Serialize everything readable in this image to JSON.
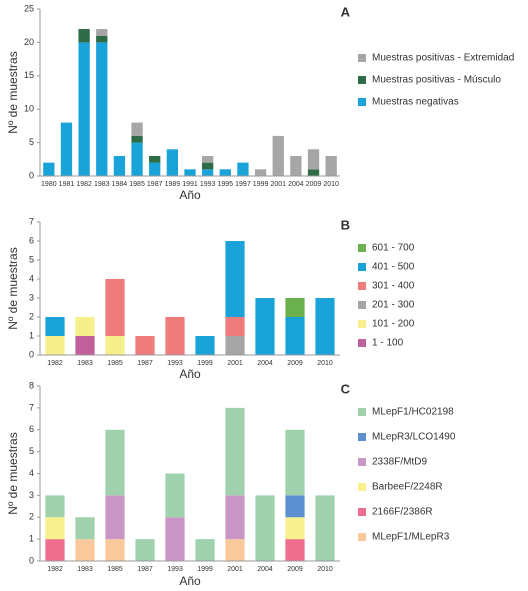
{
  "chart_data": [
    {
      "type": "bar",
      "stacked": true,
      "panel": "A",
      "x_label": "Año",
      "y_label": "Nº de muestras",
      "categories": [
        "1980",
        "1981",
        "1982",
        "1983",
        "1984",
        "1985",
        "1987",
        "1989",
        "1991",
        "1993",
        "1995",
        "1997",
        "1999",
        "2001",
        "2004",
        "2009",
        "2010"
      ],
      "series": [
        {
          "name": "Muestras negativas",
          "color": "#1aa3d9",
          "values": [
            2,
            8,
            20,
            20,
            3,
            5,
            2,
            4,
            1,
            1,
            1,
            2,
            0,
            0,
            0,
            0,
            0
          ]
        },
        {
          "name": "Muestras positivas - Músculo",
          "color": "#2e6b47",
          "values": [
            0,
            0,
            2,
            1,
            0,
            1,
            1,
            0,
            0,
            1,
            0,
            0,
            0,
            0,
            0,
            1,
            0
          ]
        },
        {
          "name": "Muestras positivas - Extremidad",
          "color": "#a6a6a6",
          "values": [
            0,
            0,
            0,
            1,
            0,
            2,
            0,
            0,
            0,
            1,
            0,
            0,
            1,
            6,
            3,
            3,
            3
          ]
        }
      ],
      "ylim": [
        0,
        25
      ],
      "yticks": [
        0,
        5,
        10,
        15,
        20,
        25
      ]
    },
    {
      "type": "bar",
      "stacked": true,
      "panel": "B",
      "x_label": "Año",
      "y_label": "Nº de muestras",
      "categories": [
        "1982",
        "1983",
        "1985",
        "1987",
        "1993",
        "1999",
        "2001",
        "2004",
        "2009",
        "2010"
      ],
      "series": [
        {
          "name": "1 - 100",
          "color": "#c0609b",
          "values": [
            0,
            1,
            0,
            0,
            0,
            0,
            0,
            0,
            0,
            0
          ]
        },
        {
          "name": "101 - 200",
          "color": "#f7ef8b",
          "values": [
            1,
            1,
            1,
            0,
            0,
            0,
            0,
            0,
            0,
            0
          ]
        },
        {
          "name": "201 - 300",
          "color": "#a6a6a6",
          "values": [
            0,
            0,
            0,
            0,
            0,
            0,
            1,
            0,
            0,
            0
          ]
        },
        {
          "name": "301 - 400",
          "color": "#ef7b7b",
          "values": [
            0,
            0,
            3,
            1,
            2,
            0,
            1,
            0,
            0,
            0
          ]
        },
        {
          "name": "401 - 500",
          "color": "#1aa3d9",
          "values": [
            1,
            0,
            0,
            0,
            0,
            1,
            4,
            3,
            2,
            3
          ]
        },
        {
          "name": "601 - 700",
          "color": "#6ab04c",
          "values": [
            0,
            0,
            0,
            0,
            0,
            0,
            0,
            0,
            1,
            0
          ]
        }
      ],
      "ylim": [
        0,
        7
      ],
      "yticks": [
        0,
        1,
        2,
        3,
        4,
        5,
        6,
        7
      ]
    },
    {
      "type": "bar",
      "stacked": true,
      "panel": "C",
      "x_label": "Año",
      "y_label": "Nº de muestras",
      "categories": [
        "1982",
        "1983",
        "1985",
        "1987",
        "1993",
        "1999",
        "2001",
        "2004",
        "2009",
        "2010"
      ],
      "series": [
        {
          "name": "MLepF1/MLepR3",
          "color": "#f9c99b",
          "values": [
            0,
            1,
            1,
            0,
            0,
            0,
            1,
            0,
            0,
            0
          ]
        },
        {
          "name": "2166F/2386R",
          "color": "#ee6f8d",
          "values": [
            1,
            0,
            0,
            0,
            0,
            0,
            0,
            0,
            1,
            0
          ]
        },
        {
          "name": "BarbeeF/2248R",
          "color": "#f8f08e",
          "values": [
            1,
            0,
            0,
            0,
            0,
            0,
            0,
            0,
            1,
            0
          ]
        },
        {
          "name": "2338F/MtD9",
          "color": "#c996c6",
          "values": [
            0,
            0,
            2,
            0,
            2,
            0,
            2,
            0,
            0,
            0
          ]
        },
        {
          "name": "MLepR3/LCO1490",
          "color": "#5b8fcf",
          "values": [
            0,
            0,
            0,
            0,
            0,
            0,
            0,
            0,
            1,
            0
          ]
        },
        {
          "name": "MLepF1/HC02198",
          "color": "#9fd1ad",
          "values": [
            1,
            1,
            3,
            1,
            2,
            1,
            4,
            3,
            3,
            3
          ]
        }
      ],
      "ylim": [
        0,
        8
      ],
      "yticks": [
        0,
        1,
        2,
        3,
        4,
        5,
        6,
        7,
        8
      ]
    }
  ]
}
